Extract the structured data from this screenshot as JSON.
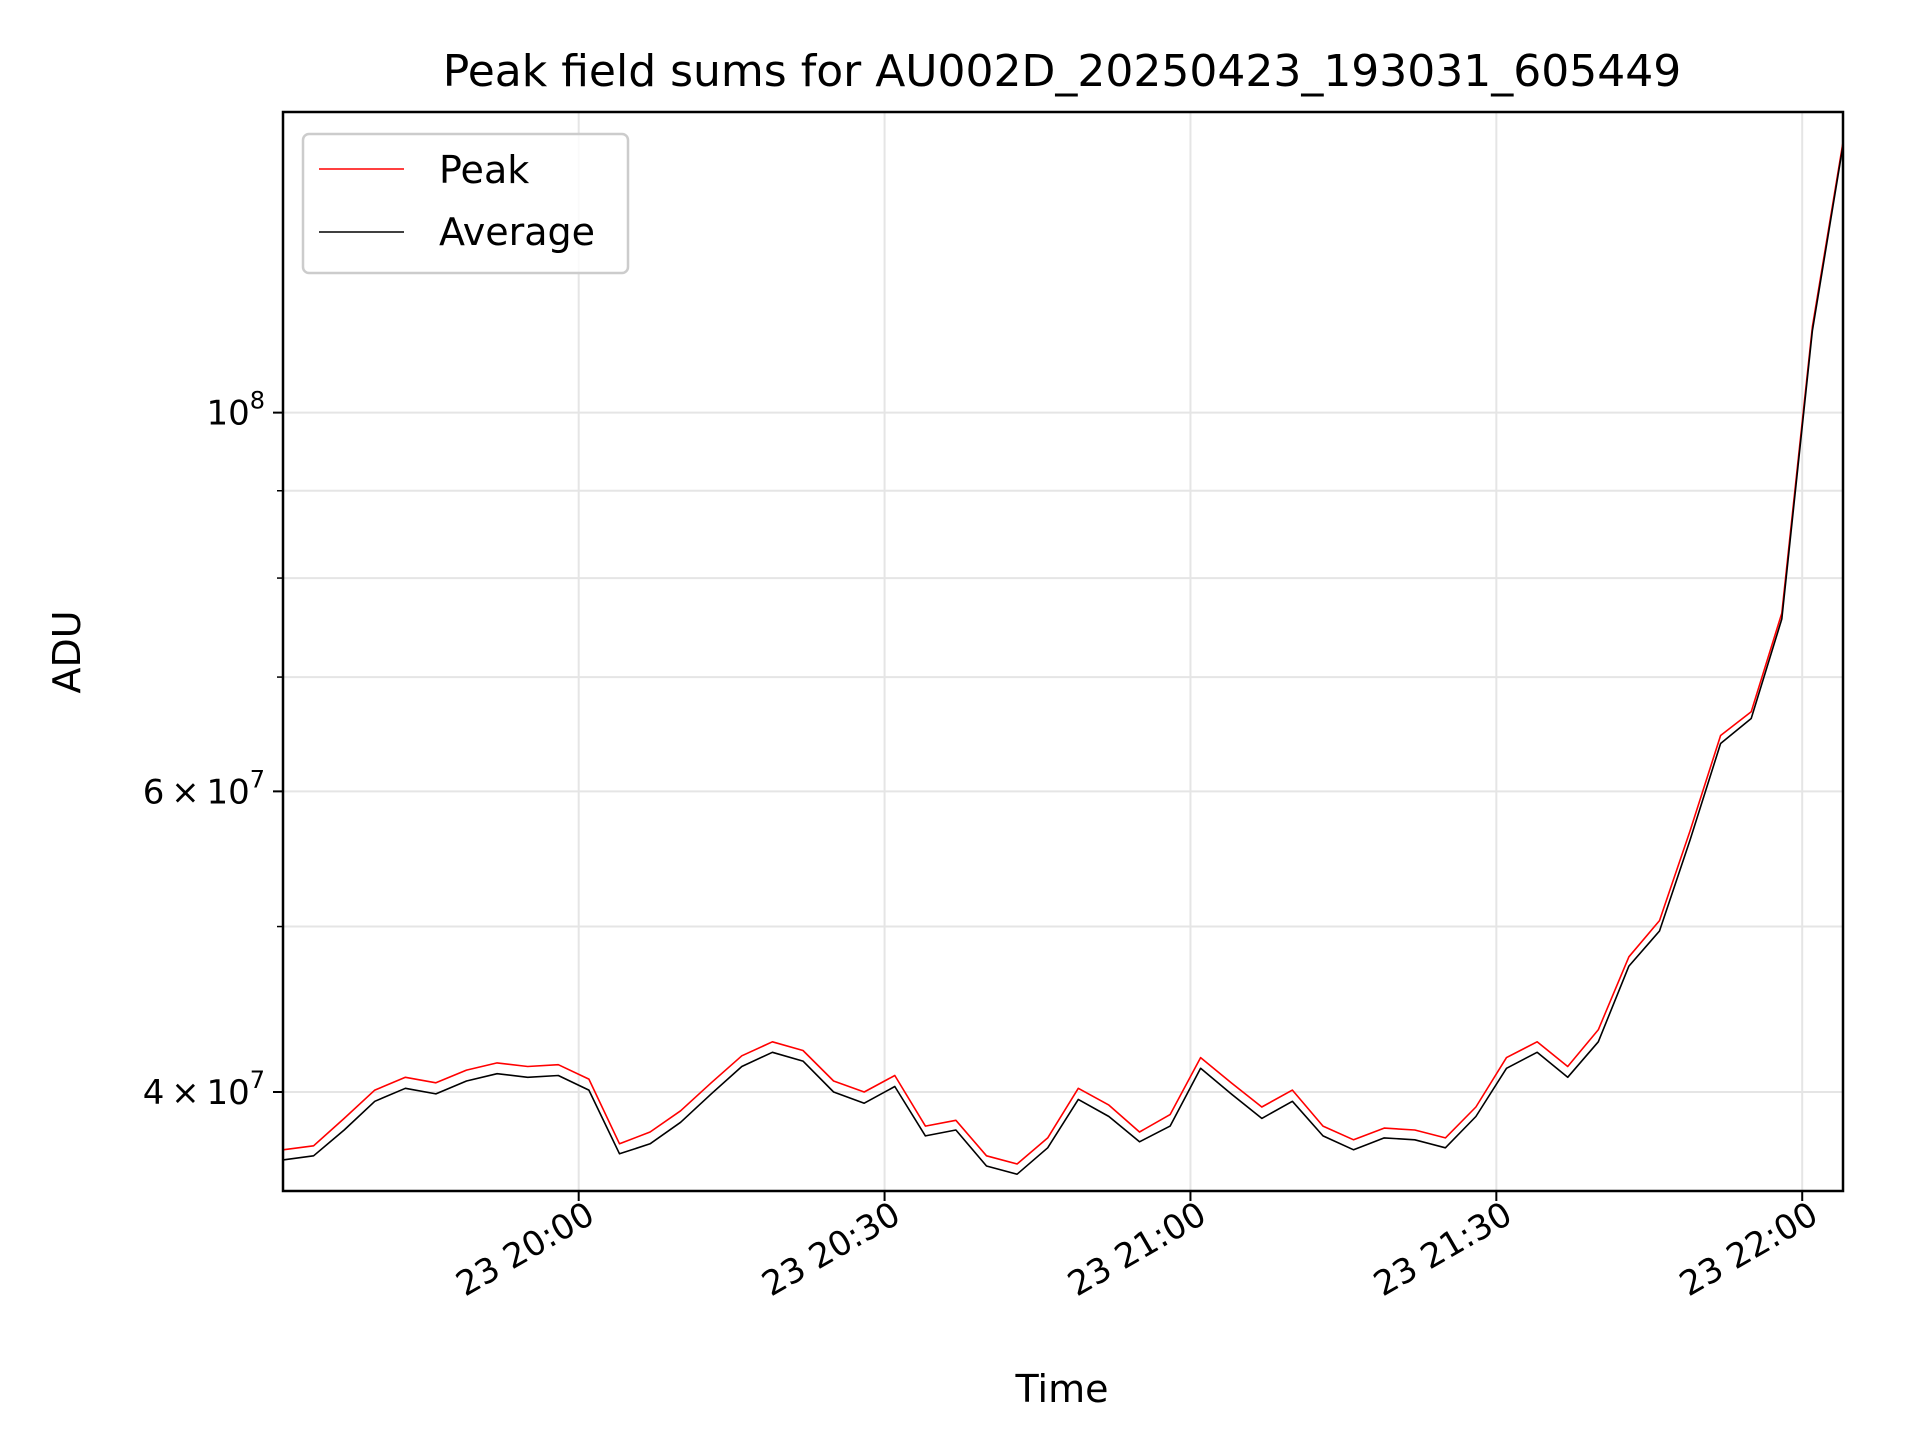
{
  "chart_data": {
    "type": "line",
    "title": "Peak field sums for AU002D_20250423_193031_605449",
    "xlabel": "Time",
    "ylabel": "ADU",
    "yscale": "log",
    "ylim": [
      35000000,
      150000000
    ],
    "xlim": [
      "2025-04-23 19:31",
      "2025-04-23 22:04"
    ],
    "grid": true,
    "legend_position": "top-left",
    "x_ticks": [
      {
        "value": "2025-04-23 20:00",
        "label": "23 20:00"
      },
      {
        "value": "2025-04-23 20:30",
        "label": "23 20:30"
      },
      {
        "value": "2025-04-23 21:00",
        "label": "23 21:00"
      },
      {
        "value": "2025-04-23 21:30",
        "label": "23 21:30"
      },
      {
        "value": "2025-04-23 22:00",
        "label": "23 22:00"
      }
    ],
    "y_ticks": [
      {
        "value": 40000000,
        "base": "4",
        "exp": "7"
      },
      {
        "value": 60000000,
        "base": "6",
        "exp": "7"
      },
      {
        "value": 100000000,
        "base": "10",
        "exp": "8"
      }
    ],
    "y_minor_ticks": [
      50000000,
      70000000,
      80000000,
      90000000
    ],
    "x": [
      "2025-04-23 19:31",
      "2025-04-23 19:34",
      "2025-04-23 19:37",
      "2025-04-23 19:40",
      "2025-04-23 19:43",
      "2025-04-23 19:46",
      "2025-04-23 19:49",
      "2025-04-23 19:52",
      "2025-04-23 19:55",
      "2025-04-23 19:58",
      "2025-04-23 20:01",
      "2025-04-23 20:04",
      "2025-04-23 20:07",
      "2025-04-23 20:10",
      "2025-04-23 20:13",
      "2025-04-23 20:16",
      "2025-04-23 20:19",
      "2025-04-23 20:22",
      "2025-04-23 20:25",
      "2025-04-23 20:28",
      "2025-04-23 20:31",
      "2025-04-23 20:34",
      "2025-04-23 20:37",
      "2025-04-23 20:40",
      "2025-04-23 20:43",
      "2025-04-23 20:46",
      "2025-04-23 20:49",
      "2025-04-23 20:52",
      "2025-04-23 20:55",
      "2025-04-23 20:58",
      "2025-04-23 21:01",
      "2025-04-23 21:04",
      "2025-04-23 21:07",
      "2025-04-23 21:10",
      "2025-04-23 21:13",
      "2025-04-23 21:16",
      "2025-04-23 21:19",
      "2025-04-23 21:22",
      "2025-04-23 21:25",
      "2025-04-23 21:28",
      "2025-04-23 21:31",
      "2025-04-23 21:34",
      "2025-04-23 21:37",
      "2025-04-23 21:40",
      "2025-04-23 21:43",
      "2025-04-23 21:46",
      "2025-04-23 21:49",
      "2025-04-23 21:52",
      "2025-04-23 21:55",
      "2025-04-23 21:58",
      "2025-04-23 22:01",
      "2025-04-23 22:04"
    ],
    "series": [
      {
        "name": "Peak",
        "color": "#ff0000",
        "values": [
          37000000,
          37200000,
          38600000,
          40100000,
          40800000,
          40500000,
          41200000,
          41600000,
          41400000,
          41500000,
          40700000,
          37300000,
          37900000,
          39000000,
          40500000,
          42000000,
          42800000,
          42300000,
          40600000,
          40000000,
          40900000,
          38200000,
          38500000,
          36700000,
          36300000,
          37600000,
          40200000,
          39300000,
          37900000,
          38800000,
          41900000,
          40500000,
          39200000,
          40100000,
          38200000,
          37500000,
          38100000,
          38000000,
          37600000,
          39200000,
          41900000,
          42800000,
          41400000,
          43500000,
          48000000,
          50400000,
          56900000,
          64700000,
          66800000,
          76300000,
          112300000,
          144000000
        ]
      },
      {
        "name": "Average",
        "color": "#000000",
        "values": [
          36500000,
          36700000,
          38000000,
          39500000,
          40200000,
          39900000,
          40600000,
          41000000,
          40800000,
          40900000,
          40100000,
          36800000,
          37300000,
          38400000,
          39900000,
          41400000,
          42200000,
          41700000,
          40000000,
          39400000,
          40300000,
          37700000,
          38000000,
          36200000,
          35800000,
          37100000,
          39600000,
          38700000,
          37400000,
          38200000,
          41300000,
          39900000,
          38600000,
          39500000,
          37700000,
          37000000,
          37600000,
          37500000,
          37100000,
          38700000,
          41300000,
          42200000,
          40800000,
          42800000,
          47400000,
          49700000,
          56200000,
          64000000,
          66200000,
          75700000,
          111700000,
          143400000
        ]
      }
    ]
  }
}
